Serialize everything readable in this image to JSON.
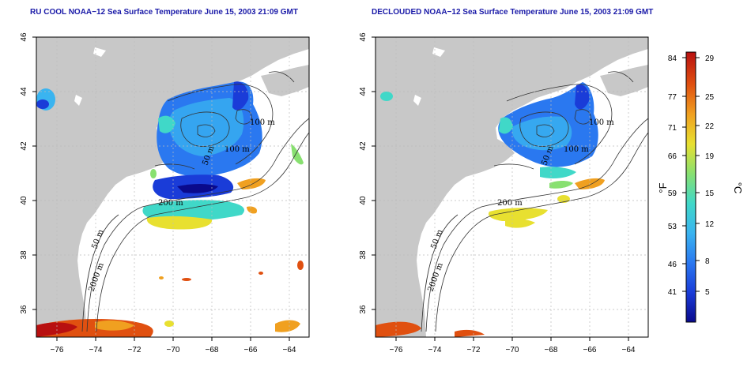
{
  "panels": [
    {
      "id": "left",
      "title": "RU COOL NOAA−12 Sea Surface Temperature June 15, 2003 21:09 GMT",
      "contour_labels": [
        "100 m",
        "100 m",
        "50 m",
        "200 m",
        "50 m",
        "2000 m"
      ]
    },
    {
      "id": "right",
      "title": "DECLOUDED NOAA−12 Sea Surface Temperature June 15, 2003 21:09 GMT",
      "contour_labels": [
        "100 m",
        "100 m",
        "50 m",
        "200 m",
        "50 m",
        "2000 m"
      ]
    }
  ],
  "axes": {
    "x_ticks": [
      "−76",
      "−74",
      "−72",
      "−70",
      "−68",
      "−66",
      "−64"
    ],
    "y_ticks": [
      "46",
      "44",
      "42",
      "40",
      "38",
      "36"
    ]
  },
  "colorbar": {
    "fahrenheit_label": "°F",
    "celsius_label": "°C",
    "fahrenheit_ticks": [
      "84",
      "77",
      "71",
      "66",
      "59",
      "53",
      "46",
      "41"
    ],
    "celsius_ticks": [
      "29",
      "25",
      "22",
      "19",
      "15",
      "12",
      "8",
      "5"
    ],
    "colors": [
      "#0a0a8c",
      "#1a3cd8",
      "#2a78f0",
      "#3ab4f0",
      "#40d8c8",
      "#88e070",
      "#e8e030",
      "#f0a020",
      "#e05010",
      "#b81010"
    ]
  },
  "colors": {
    "land": "#c8c8c8",
    "ocean": "#ffffff",
    "title": "#1a1aa8",
    "grid": "#bbbbbb"
  }
}
